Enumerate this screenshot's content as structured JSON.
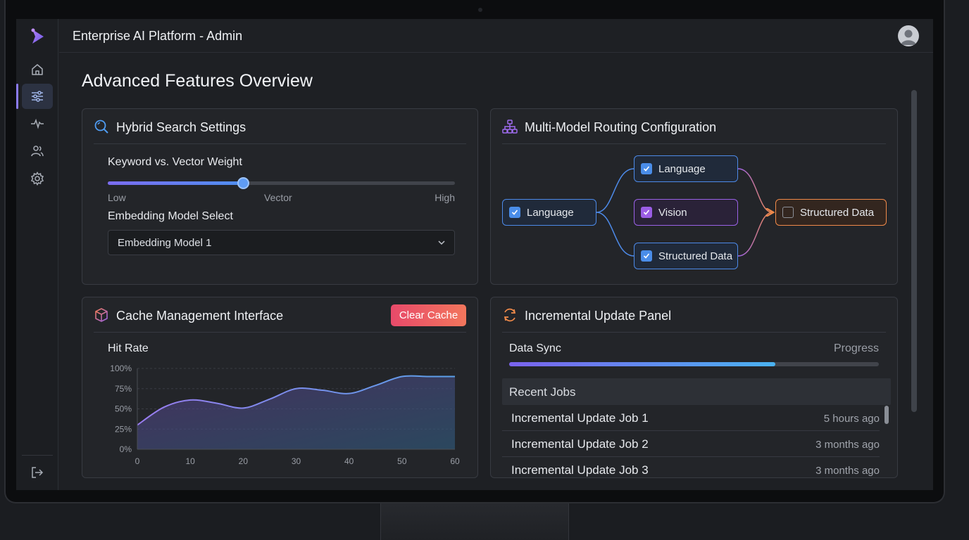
{
  "app": {
    "title": "Enterprise AI Platform - Admin"
  },
  "page": {
    "title": "Advanced Features Overview"
  },
  "sidebar": {
    "items": [
      {
        "name": "home-icon",
        "active": false
      },
      {
        "name": "sliders-icon",
        "active": true
      },
      {
        "name": "activity-icon",
        "active": false
      },
      {
        "name": "users-icon",
        "active": false
      },
      {
        "name": "gear-icon",
        "active": false
      }
    ],
    "bottom_icon": "logout-icon"
  },
  "hybrid_search": {
    "title": "Hybrid Search Settings",
    "weight_label": "Keyword vs. Vector Weight",
    "weight_value": 0.39,
    "slider_low": "Low",
    "slider_mid": "Vector",
    "slider_high": "High",
    "model_label": "Embedding Model Select",
    "model_selected": "Embedding Model 1"
  },
  "routing": {
    "title": "Multi-Model Routing Configuration",
    "source": {
      "label": "Language",
      "checked": true
    },
    "targets": [
      {
        "label": "Language",
        "checked": true
      },
      {
        "label": "Vision",
        "checked": true
      },
      {
        "label": "Structured Data",
        "checked": true
      }
    ],
    "output": {
      "label": "Structured Data",
      "checked": false
    }
  },
  "cache": {
    "title": "Cache Management Interface",
    "clear_label": "Clear Cache",
    "chart_label": "Hit Rate"
  },
  "chart_data": {
    "type": "area",
    "title": "Hit Rate",
    "xlabel": "",
    "ylabel": "",
    "x": [
      0,
      5,
      10,
      15,
      20,
      25,
      30,
      35,
      40,
      45,
      50,
      55,
      60
    ],
    "values": [
      30,
      52,
      61,
      57,
      51,
      62,
      75,
      73,
      69,
      79,
      90,
      90,
      90
    ],
    "xlim": [
      0,
      60
    ],
    "ylim": [
      0,
      100
    ],
    "x_ticks": [
      "0",
      "10",
      "20",
      "30",
      "40",
      "50",
      "60"
    ],
    "y_ticks": [
      "0%",
      "25%",
      "50%",
      "75%",
      "100%"
    ],
    "colors": {
      "line_start": "#9a7cf0",
      "line_end": "#5aa0e8"
    }
  },
  "incremental": {
    "title": "Incremental Update Panel",
    "sync_label": "Data Sync",
    "progress_label": "Progress",
    "progress_value": 0.72,
    "jobs_header": "Recent Jobs",
    "jobs": [
      {
        "name": "Incremental Update Job 1",
        "time": "5 hours ago"
      },
      {
        "name": "Incremental Update Job 2",
        "time": "3 months ago"
      },
      {
        "name": "Incremental Update Job 3",
        "time": "3 months ago"
      }
    ]
  }
}
